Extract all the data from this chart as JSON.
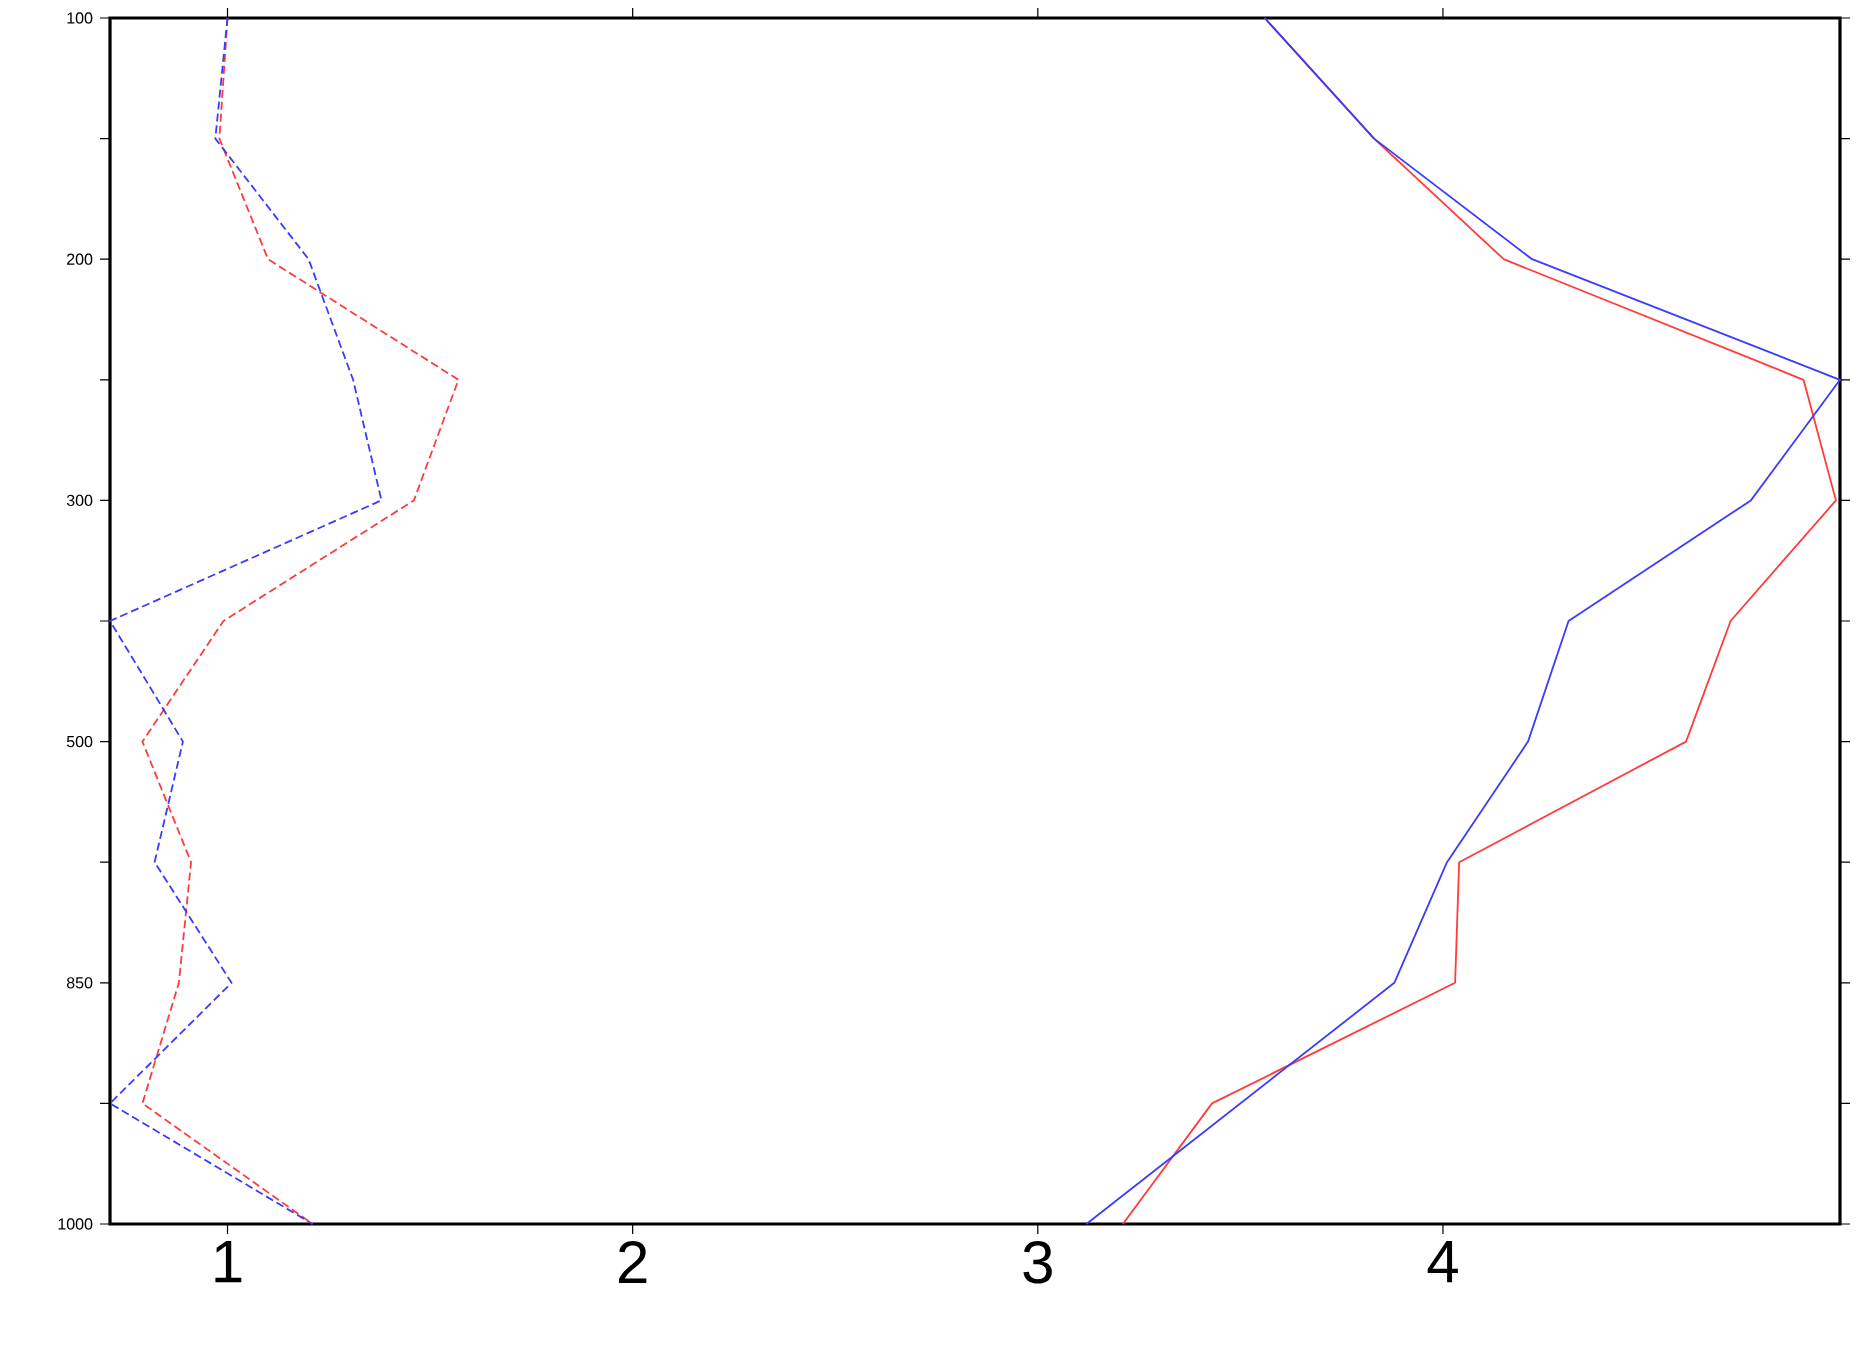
{
  "chart_data": {
    "type": "line",
    "orientation": "horizontal",
    "categories": [
      "100",
      null,
      "200",
      null,
      "300",
      null,
      "500",
      null,
      "850",
      null,
      "1000"
    ],
    "xlim": [
      0.71,
      4.98
    ],
    "xticks": [
      1,
      2,
      3,
      4
    ],
    "series": [
      {
        "color": "#ff3b3b",
        "line_style": "dashed",
        "values": [
          1.0,
          0.98,
          1.1,
          1.57,
          1.46,
          0.99,
          0.79,
          0.91,
          0.88,
          0.79,
          1.21
        ]
      },
      {
        "color": "#3b3bff",
        "line_style": "dashed",
        "values": [
          1.0,
          0.97,
          1.2,
          1.31,
          1.38,
          0.71,
          0.89,
          0.82,
          1.01,
          0.71,
          1.21
        ]
      },
      {
        "color": "#ff3b3b",
        "line_style": "solid",
        "values": [
          3.56,
          3.83,
          4.15,
          4.89,
          4.97,
          4.71,
          4.6,
          4.04,
          4.03,
          3.43,
          3.21
        ]
      },
      {
        "color": "#3b3bff",
        "line_style": "solid",
        "values": [
          3.56,
          3.83,
          4.22,
          4.98,
          4.76,
          4.31,
          4.21,
          4.01,
          3.88,
          3.5,
          3.12
        ]
      }
    ]
  }
}
